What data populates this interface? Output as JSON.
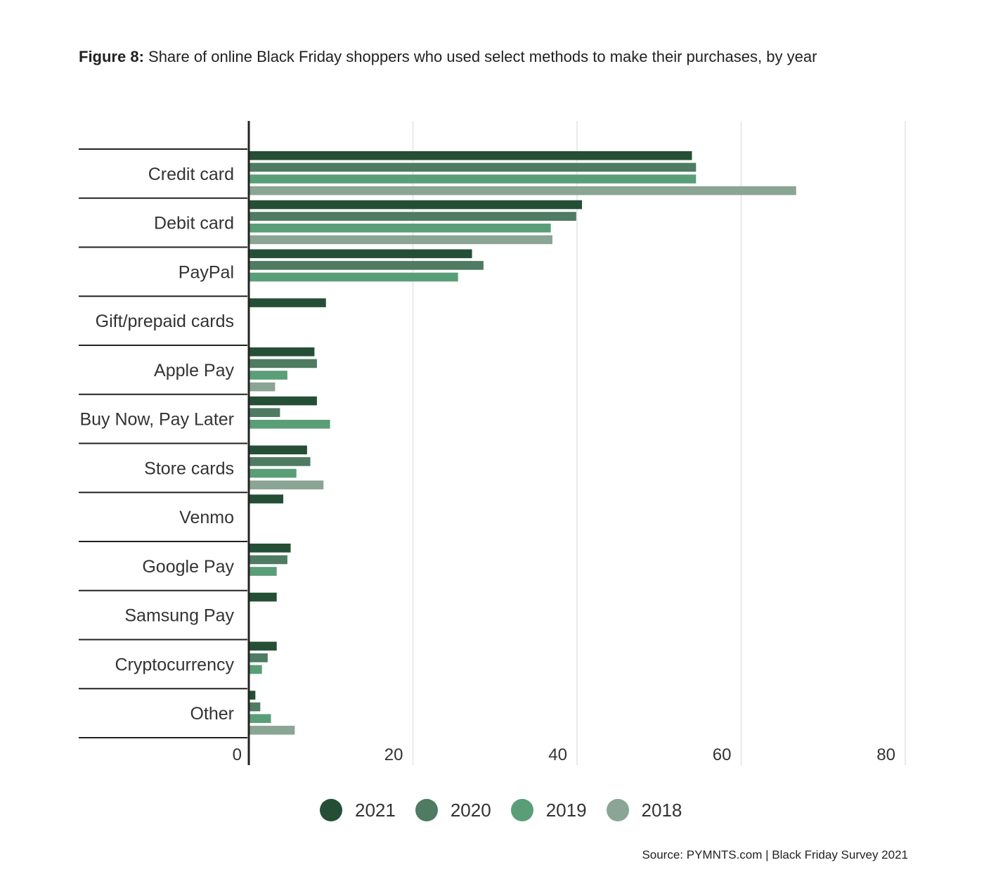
{
  "title": {
    "prefix": "Figure 8:",
    "text": " Share of online Black Friday shoppers who used select methods to make their purchases, by year"
  },
  "chart_data": {
    "type": "bar",
    "orientation": "horizontal",
    "title": "Figure 8: Share of online Black Friday shoppers who used select methods to make their purchases, by year",
    "categories": [
      "Credit card",
      "Debit card",
      "PayPal",
      "Gift/prepaid cards",
      "Apple Pay",
      "Buy Now, Pay Later",
      "Store cards",
      "Venmo",
      "Google Pay",
      "Samsung Pay",
      "Cryptocurrency",
      "Other"
    ],
    "series": [
      {
        "name": "2021",
        "color": "#244f36",
        "values": [
          54,
          40.6,
          27.2,
          9.4,
          8,
          8.3,
          7.1,
          4.2,
          5.1,
          3.4,
          3.4,
          0.8
        ]
      },
      {
        "name": "2020",
        "color": "#4e7b62",
        "values": [
          54.5,
          39.9,
          28.6,
          null,
          8.3,
          3.8,
          7.5,
          null,
          4.7,
          null,
          2.3,
          1.4
        ]
      },
      {
        "name": "2019",
        "color": "#5a9e78",
        "values": [
          54.5,
          36.8,
          25.5,
          null,
          4.7,
          9.9,
          5.8,
          null,
          3.4,
          null,
          1.6,
          2.7
        ]
      },
      {
        "name": "2018",
        "color": "#8aa593",
        "values": [
          66.7,
          37,
          null,
          null,
          3.2,
          null,
          9.1,
          null,
          null,
          null,
          null,
          5.6
        ]
      }
    ],
    "x_ticks": [
      "0",
      "20",
      "40",
      "60",
      "80"
    ],
    "xlim": [
      0,
      80
    ],
    "grid": true,
    "legend_position": "bottom-center"
  },
  "legend": {
    "items": [
      {
        "label": "2021",
        "color": "#244f36"
      },
      {
        "label": "2020",
        "color": "#4e7b62"
      },
      {
        "label": "2019",
        "color": "#5a9e78"
      },
      {
        "label": "2018",
        "color": "#8aa593"
      }
    ]
  },
  "source": "Source: PYMNTS.com | Black Friday Survey 2021"
}
